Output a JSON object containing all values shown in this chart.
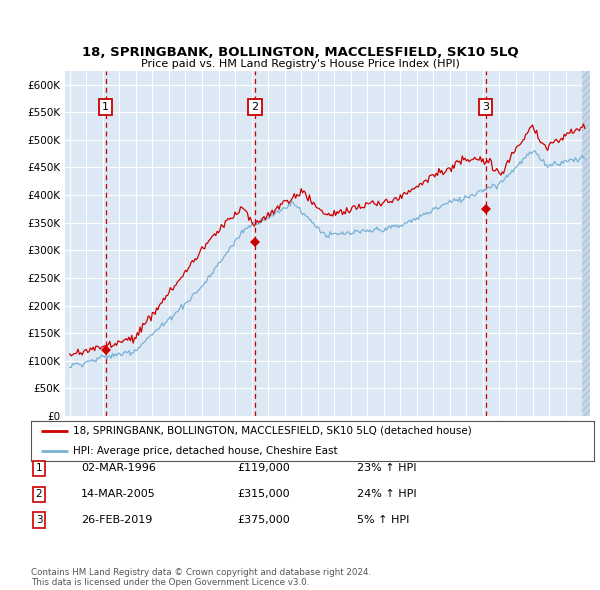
{
  "title": "18, SPRINGBANK, BOLLINGTON, MACCLESFIELD, SK10 5LQ",
  "subtitle": "Price paid vs. HM Land Registry's House Price Index (HPI)",
  "ylim": [
    0,
    625000
  ],
  "yticks": [
    0,
    50000,
    100000,
    150000,
    200000,
    250000,
    300000,
    350000,
    400000,
    450000,
    500000,
    550000,
    600000
  ],
  "xlim_start": 1993.7,
  "xlim_end": 2025.5,
  "background_color": "#dce9f5",
  "grid_color": "#ffffff",
  "property_color": "#cc0000",
  "hpi_color": "#7ab0d4",
  "sale_points": [
    {
      "year": 1996.17,
      "price": 119000,
      "label": "1"
    },
    {
      "year": 2005.21,
      "price": 315000,
      "label": "2"
    },
    {
      "year": 2019.16,
      "price": 375000,
      "label": "3"
    }
  ],
  "vline_color": "#cc0000",
  "legend_property": "18, SPRINGBANK, BOLLINGTON, MACCLESFIELD, SK10 5LQ (detached house)",
  "legend_hpi": "HPI: Average price, detached house, Cheshire East",
  "table_rows": [
    {
      "num": "1",
      "date": "02-MAR-1996",
      "price": "£119,000",
      "hpi": "23% ↑ HPI"
    },
    {
      "num": "2",
      "date": "14-MAR-2005",
      "price": "£315,000",
      "hpi": "24% ↑ HPI"
    },
    {
      "num": "3",
      "date": "26-FEB-2019",
      "price": "£375,000",
      "hpi": "5% ↑ HPI"
    }
  ],
  "footer": "Contains HM Land Registry data © Crown copyright and database right 2024.\nThis data is licensed under the Open Government Licence v3.0."
}
